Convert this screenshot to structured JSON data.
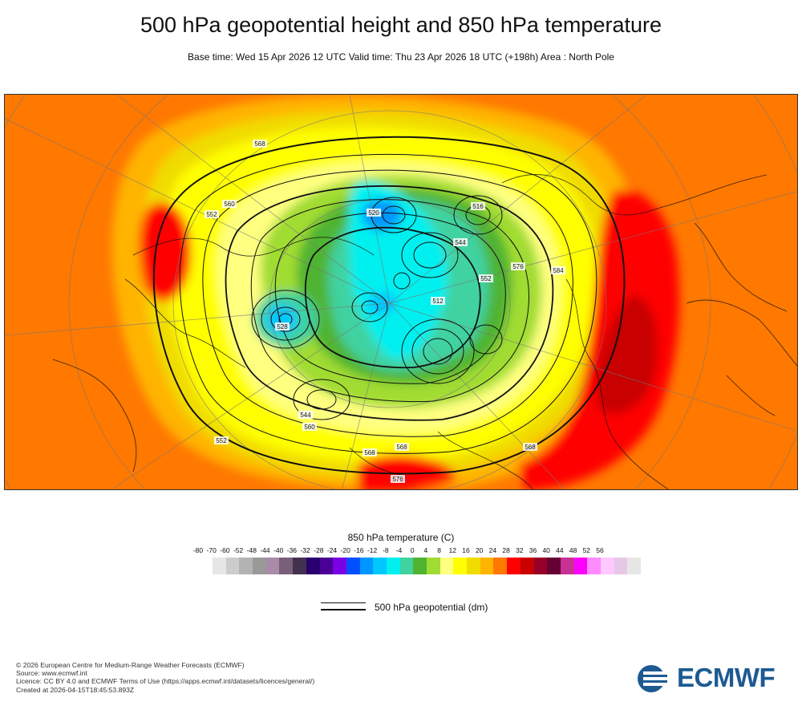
{
  "header": {
    "title": "500 hPa geopotential height and 850 hPa temperature",
    "subtitle": "Base time: Wed 15 Apr 2026 12 UTC Valid time: Thu 23 Apr 2026 18 UTC (+198h) Area : North Pole"
  },
  "map": {
    "contour_labels": [
      "552",
      "560",
      "568",
      "568",
      "576",
      "584",
      "544",
      "528",
      "520",
      "512",
      "516",
      "568",
      "552",
      "576",
      "560",
      "544",
      "552",
      "568"
    ]
  },
  "legend": {
    "temperature_title": "850 hPa temperature (C)",
    "scale": [
      "-80",
      "-70",
      "-60",
      "-52",
      "-48",
      "-44",
      "-40",
      "-36",
      "-32",
      "-28",
      "-24",
      "-20",
      "-16",
      "-12",
      "-8",
      "-4",
      "0",
      "4",
      "8",
      "12",
      "16",
      "20",
      "24",
      "28",
      "32",
      "36",
      "40",
      "44",
      "48",
      "52",
      "56"
    ],
    "colors": [
      "#e6e6e6",
      "#cccccc",
      "#b3b3b3",
      "#999999",
      "#a98aa9",
      "#7a5f7a",
      "#43304f",
      "#2a0070",
      "#4b0096",
      "#7a00e6",
      "#0050ff",
      "#0096ff",
      "#00c8ff",
      "#00f0f0",
      "#40d2a0",
      "#50b432",
      "#a0dc32",
      "#ffff80",
      "#ffff00",
      "#f0dc00",
      "#ffb400",
      "#ff7800",
      "#ff0000",
      "#c80000",
      "#960028",
      "#640032",
      "#c83296",
      "#ff00ff",
      "#ff8cff",
      "#ffc8ff",
      "#e6c8e6",
      "#e6e6e6"
    ],
    "contour_label": "500 hPa geopotential (dm)"
  },
  "footer": {
    "copyright": "© 2026 European Centre for Medium-Range Weather Forecasts (ECMWF)",
    "source": "Source: www.ecmwf.int",
    "licence": "Licence: CC BY 4.0 and ECMWF Terms of Use (https://apps.ecmwf.int/datasets/licences/general/)",
    "created": "Created at 2026-04-15T18:45:53.893Z"
  },
  "logo": {
    "text": "ECMWF",
    "color": "#1d5a92"
  }
}
